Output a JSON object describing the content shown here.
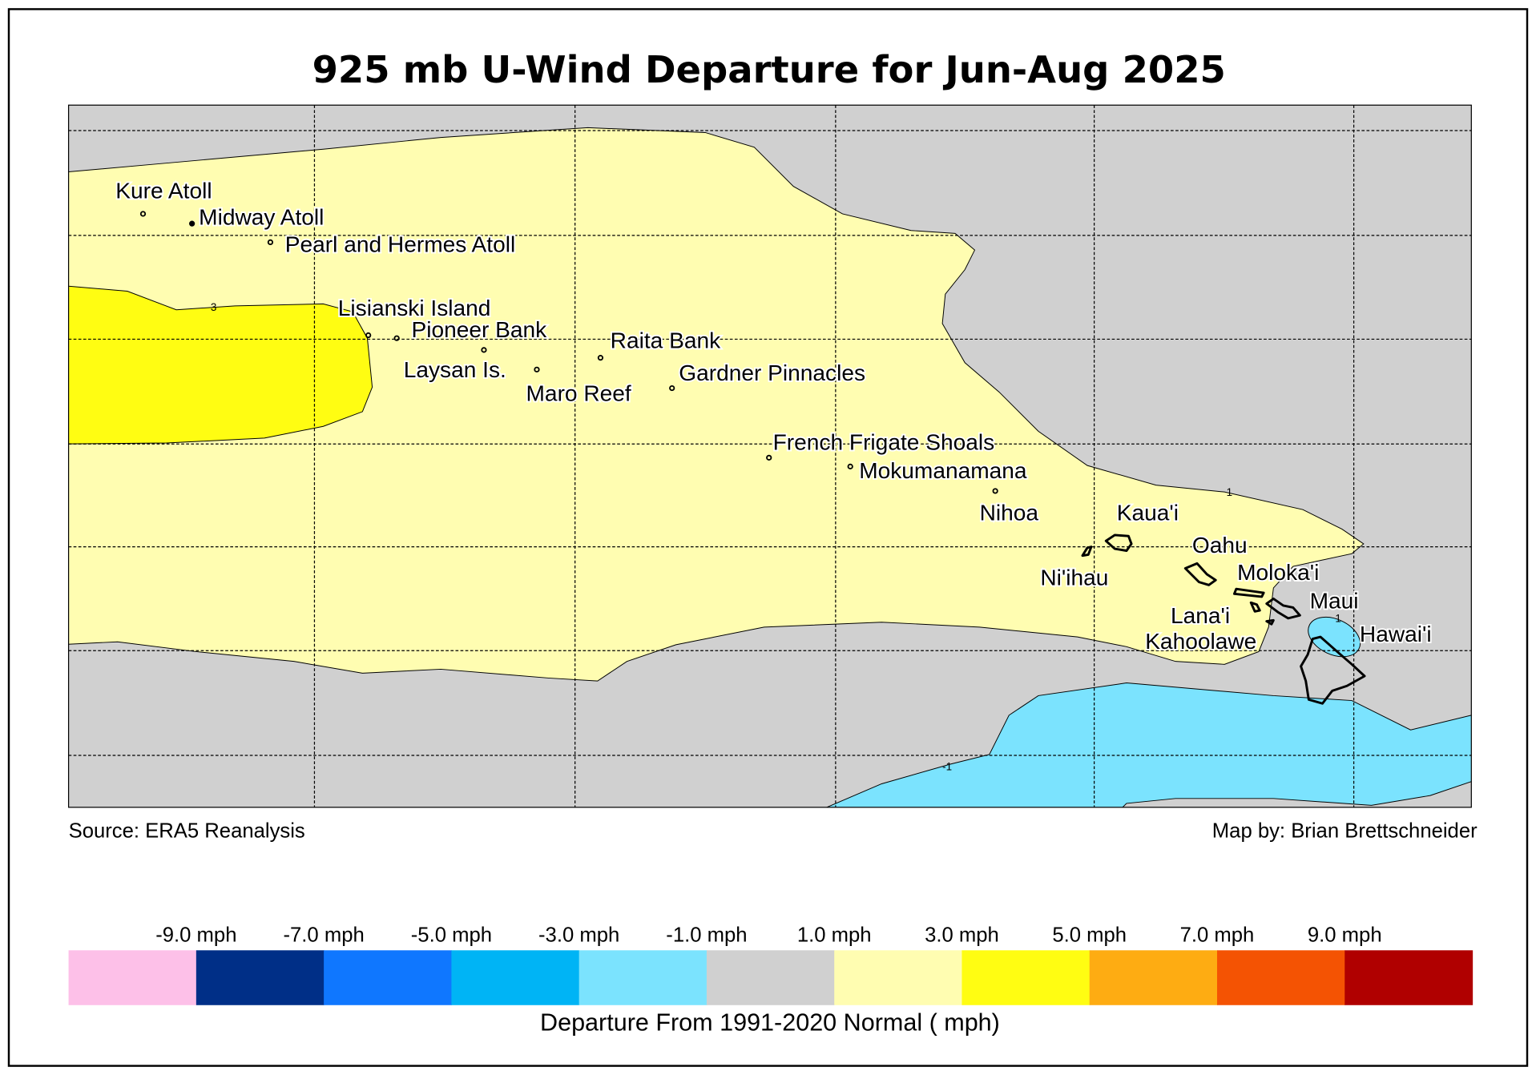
{
  "title": "925 mb U-Wind Departure for Jun-Aug 2025",
  "source": "Source: ERA5 Reanalysis",
  "credit": "Map by: Brian Brettschneider",
  "locations": [
    "Kure Atoll",
    "Midway Atoll",
    "Pearl and Hermes Atoll",
    "Lisianski Island",
    "Pioneer Bank",
    "Raita Bank",
    "Laysan Is.",
    "Gardner Pinnacles",
    "Maro Reef",
    "French Frigate Shoals",
    "Mokumanamana",
    "Nihoa",
    "Kaua'i",
    "Ni'ihau",
    "Oahu",
    "Moloka'i",
    "Maui",
    "Lana'i",
    "Kahoolawe",
    "Hawai'i"
  ],
  "contour_labels": [
    "3",
    "1",
    "1",
    "-1"
  ],
  "colorbar": {
    "label": "Departure From 1991-2020 Normal ( mph)",
    "ticks": [
      "-9.0 mph",
      "-7.0 mph",
      "-5.0 mph",
      "-3.0 mph",
      "-1.0 mph",
      "1.0 mph",
      "3.0 mph",
      "5.0 mph",
      "7.0 mph",
      "9.0 mph"
    ],
    "colors": [
      "#fdc0e8",
      "#002f87",
      "#0f77ff",
      "#00b4f5",
      "#7be3fe",
      "#d0d0d0",
      "#fffdb1",
      "#fffd12",
      "#feac12",
      "#f45303",
      "#b00000"
    ]
  },
  "map_colors": {
    "below_minus1": "#7be3fe",
    "neutral": "#d0d0d0",
    "one_to_three": "#fffdb1",
    "three_to_five": "#fffd12"
  }
}
